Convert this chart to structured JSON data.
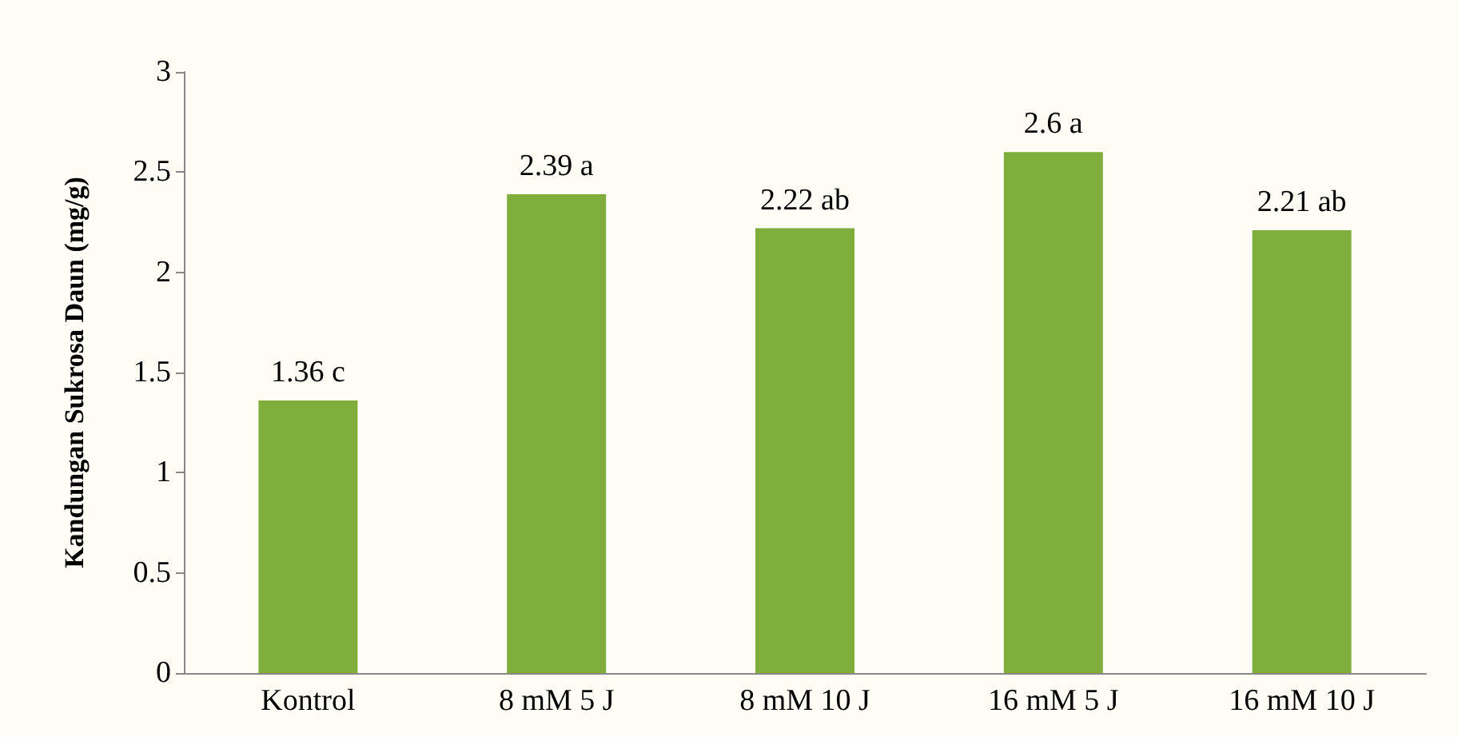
{
  "chart_data": {
    "type": "bar",
    "ylabel": "Kandungan Sukrosa Daun (mg/g)",
    "categories": [
      "Kontrol",
      "8 mM 5 J",
      "8 mM 10 J",
      "16 mM 5 J",
      "16 mM 10 J"
    ],
    "values": [
      1.36,
      2.39,
      2.22,
      2.6,
      2.21
    ],
    "value_labels": [
      "1.36 c",
      "2.39 a",
      "2.22 ab",
      "2.6 a",
      "2.21 ab"
    ],
    "color": "#7fae3c",
    "ylim": [
      0,
      3
    ],
    "yticks": [
      0,
      0.5,
      1,
      1.5,
      2,
      2.5,
      3
    ],
    "grid": false
  }
}
